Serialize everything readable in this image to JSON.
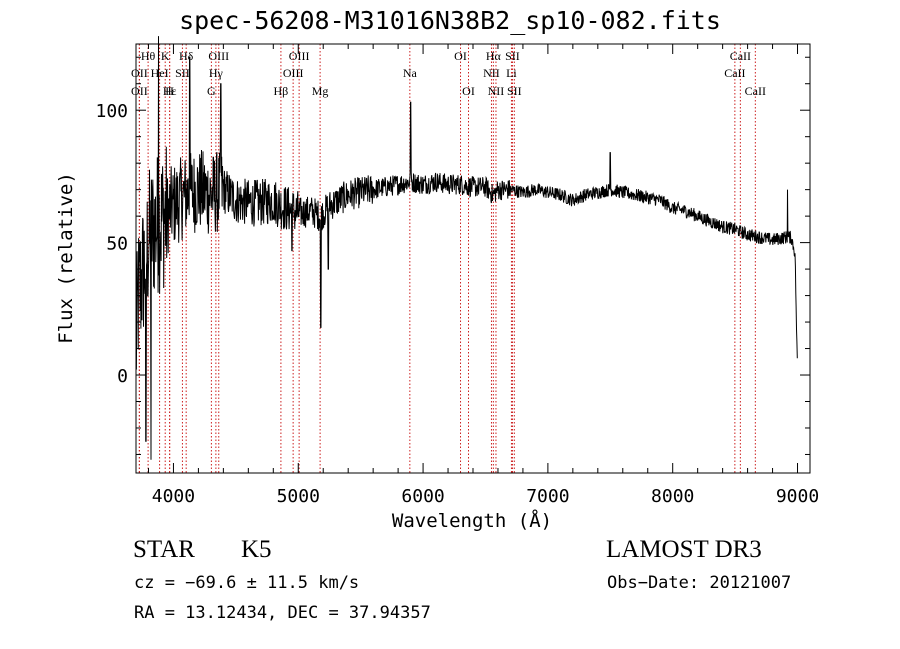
{
  "chart_data": {
    "type": "line",
    "title": "spec-56208-M31016N38B2_sp10-082.fits",
    "xlabel": "Wavelength (Å)",
    "ylabel": "Flux (relative)",
    "xlim": [
      3700,
      9100
    ],
    "ylim": [
      -37,
      125
    ],
    "x_ticks": [
      4000,
      5000,
      6000,
      7000,
      8000,
      9000
    ],
    "x_tick_labels": [
      "4000",
      "5000",
      "6000",
      "7000",
      "8000",
      "9000"
    ],
    "y_ticks": [
      0,
      50,
      100
    ],
    "y_tick_labels": [
      "0",
      "50",
      "100"
    ],
    "series": [
      {
        "name": "flux",
        "anchors": [
          [
            3700,
            10
          ],
          [
            3720,
            30
          ],
          [
            3760,
            40
          ],
          [
            3800,
            50
          ],
          [
            3840,
            55
          ],
          [
            3880,
            58
          ],
          [
            3930,
            60
          ],
          [
            4000,
            64
          ],
          [
            4100,
            68
          ],
          [
            4200,
            70
          ],
          [
            4300,
            68
          ],
          [
            4400,
            70
          ],
          [
            4500,
            66
          ],
          [
            4600,
            65
          ],
          [
            4700,
            65
          ],
          [
            4800,
            66
          ],
          [
            4850,
            64
          ],
          [
            4900,
            63
          ],
          [
            5000,
            61
          ],
          [
            5100,
            62
          ],
          [
            5180,
            60
          ],
          [
            5250,
            64
          ],
          [
            5400,
            68
          ],
          [
            5600,
            70
          ],
          [
            5800,
            72
          ],
          [
            5900,
            73
          ],
          [
            6000,
            72
          ],
          [
            6100,
            73
          ],
          [
            6200,
            72
          ],
          [
            6300,
            72
          ],
          [
            6400,
            71
          ],
          [
            6500,
            71
          ],
          [
            6560,
            68
          ],
          [
            6600,
            70
          ],
          [
            6700,
            70
          ],
          [
            6800,
            69
          ],
          [
            6900,
            70
          ],
          [
            7000,
            69
          ],
          [
            7100,
            68
          ],
          [
            7200,
            66
          ],
          [
            7300,
            68
          ],
          [
            7400,
            69
          ],
          [
            7500,
            70
          ],
          [
            7600,
            69
          ],
          [
            7700,
            68
          ],
          [
            7800,
            67
          ],
          [
            7900,
            66
          ],
          [
            8000,
            63
          ],
          [
            8100,
            62
          ],
          [
            8200,
            60
          ],
          [
            8300,
            58
          ],
          [
            8400,
            56
          ],
          [
            8500,
            55
          ],
          [
            8600,
            53
          ],
          [
            8700,
            52
          ],
          [
            8800,
            51
          ],
          [
            8900,
            52
          ],
          [
            8950,
            52
          ],
          [
            8980,
            46
          ],
          [
            9000,
            0
          ]
        ],
        "spikes": [
          [
            5180,
            18
          ],
          [
            5240,
            40
          ],
          [
            4380,
            110
          ],
          [
            4130,
            120
          ],
          [
            3880,
            128
          ],
          [
            3820,
            -32
          ],
          [
            3780,
            -25
          ],
          [
            5900,
            103
          ],
          [
            7500,
            84
          ],
          [
            8920,
            70
          ],
          [
            4950,
            47
          ]
        ]
      }
    ],
    "line_markers": [
      {
        "label": "Hα",
        "wave": 6563,
        "row": 0
      },
      {
        "label": "Hβ",
        "wave": 4861,
        "row": 2
      },
      {
        "label": "Hγ",
        "wave": 4340,
        "row": 1
      },
      {
        "label": "Hδ",
        "wave": 4102,
        "row": 0
      },
      {
        "label": "Hε",
        "wave": 3970,
        "row": 2
      },
      {
        "label": "Hθ",
        "wave": 3797,
        "row": 0
      },
      {
        "label": "K",
        "wave": 3934,
        "row": 0
      },
      {
        "label": "H",
        "wave": 3969,
        "row": 2
      },
      {
        "label": "G",
        "wave": 4304,
        "row": 2
      },
      {
        "label": "Mg",
        "wave": 5175,
        "row": 2
      },
      {
        "label": "Na",
        "wave": 5894,
        "row": 1
      },
      {
        "label": "OII",
        "wave": 3727,
        "row": 1
      },
      {
        "label": "OII",
        "wave": 3727,
        "row": 2
      },
      {
        "label": "HeI",
        "wave": 3889,
        "row": 1
      },
      {
        "label": "SII",
        "wave": 4072,
        "row": 1
      },
      {
        "label": "OIII",
        "wave": 4363,
        "row": 0
      },
      {
        "label": "OIII",
        "wave": 4959,
        "row": 1
      },
      {
        "label": "OIII",
        "wave": 5007,
        "row": 0
      },
      {
        "label": "OI",
        "wave": 6300,
        "row": 0
      },
      {
        "label": "OI",
        "wave": 6364,
        "row": 2
      },
      {
        "label": "NII",
        "wave": 6548,
        "row": 1
      },
      {
        "label": "NII",
        "wave": 6584,
        "row": 2
      },
      {
        "label": "SII",
        "wave": 6716,
        "row": 0
      },
      {
        "label": "SII",
        "wave": 6731,
        "row": 2
      },
      {
        "label": "Li",
        "wave": 6708,
        "row": 1
      },
      {
        "label": "CaII",
        "wave": 8498,
        "row": 1
      },
      {
        "label": "CaII",
        "wave": 8542,
        "row": 0
      },
      {
        "label": "CaII",
        "wave": 8662,
        "row": 2
      }
    ],
    "marker_color": "#cc2020"
  },
  "info": {
    "class": "STAR",
    "subclass": "K5",
    "survey": "LAMOST DR3",
    "cz": "cz = −69.6 ± 11.5 km/s",
    "obs_date": "Obs−Date: 20121007",
    "radec": "RA =  13.12434, DEC =  37.94357"
  }
}
